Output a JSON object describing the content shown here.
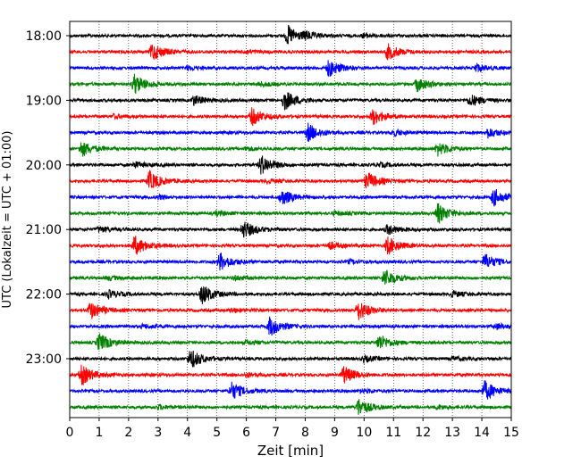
{
  "chart_data": {
    "type": "line",
    "xlabel": "Zeit  [min]",
    "ylabel": "UTC (Lokalzeit = UTC + 01:00)",
    "xlim": [
      0,
      15
    ],
    "x_ticks": [
      "0",
      "1",
      "2",
      "3",
      "4",
      "5",
      "6",
      "7",
      "8",
      "9",
      "10",
      "11",
      "12",
      "13",
      "14",
      "15"
    ],
    "y_tick_labels": [
      "18:00",
      "19:00",
      "20:00",
      "21:00",
      "22:00",
      "23:00"
    ],
    "grid": "vertical dotted",
    "line_colors": [
      "#000000",
      "#ff0000",
      "#0000ff",
      "#008000"
    ],
    "traces": [
      {
        "label": "18:00",
        "color": "#000000",
        "events": [
          [
            7.4,
            1.0
          ],
          [
            8.0,
            0.3
          ],
          [
            10.0,
            0.2
          ]
        ]
      },
      {
        "label": "18:15",
        "color": "#ff0000",
        "events": [
          [
            2.8,
            0.9
          ],
          [
            10.8,
            0.8
          ],
          [
            6.0,
            0.2
          ]
        ]
      },
      {
        "label": "18:30",
        "color": "#0000ff",
        "events": [
          [
            8.8,
            0.9
          ],
          [
            13.8,
            0.4
          ],
          [
            4.0,
            0.2
          ]
        ]
      },
      {
        "label": "18:45",
        "color": "#008000",
        "events": [
          [
            2.2,
            1.0
          ],
          [
            11.8,
            0.7
          ],
          [
            6.5,
            0.2
          ]
        ]
      },
      {
        "label": "19:00",
        "color": "#000000",
        "events": [
          [
            7.3,
            1.0
          ],
          [
            4.2,
            0.5
          ],
          [
            13.6,
            0.6
          ]
        ]
      },
      {
        "label": "19:15",
        "color": "#ff0000",
        "events": [
          [
            6.2,
            0.9
          ],
          [
            10.3,
            0.8
          ],
          [
            1.5,
            0.2
          ]
        ]
      },
      {
        "label": "19:30",
        "color": "#0000ff",
        "events": [
          [
            8.1,
            0.9
          ],
          [
            14.2,
            0.5
          ],
          [
            11.0,
            0.3
          ]
        ]
      },
      {
        "label": "19:45",
        "color": "#008000",
        "events": [
          [
            0.4,
            0.8
          ],
          [
            12.5,
            0.7
          ],
          [
            6.0,
            0.2
          ]
        ]
      },
      {
        "label": "20:00",
        "color": "#000000",
        "events": [
          [
            6.5,
            1.0
          ],
          [
            2.2,
            0.3
          ],
          [
            10.5,
            0.2
          ]
        ]
      },
      {
        "label": "20:15",
        "color": "#ff0000",
        "events": [
          [
            2.7,
            1.0
          ],
          [
            10.1,
            0.9
          ],
          [
            6.7,
            0.2
          ]
        ]
      },
      {
        "label": "20:30",
        "color": "#0000ff",
        "events": [
          [
            7.2,
            0.8
          ],
          [
            14.4,
            0.9
          ],
          [
            3.0,
            0.2
          ]
        ]
      },
      {
        "label": "20:45",
        "color": "#008000",
        "events": [
          [
            12.5,
            1.0
          ],
          [
            5.0,
            0.2
          ],
          [
            9.0,
            0.2
          ]
        ]
      },
      {
        "label": "21:00",
        "color": "#000000",
        "events": [
          [
            5.9,
            0.9
          ],
          [
            10.8,
            0.5
          ],
          [
            1.0,
            0.3
          ]
        ]
      },
      {
        "label": "21:15",
        "color": "#ff0000",
        "events": [
          [
            2.2,
            1.0
          ],
          [
            10.8,
            0.9
          ],
          [
            8.8,
            0.4
          ]
        ]
      },
      {
        "label": "21:30",
        "color": "#0000ff",
        "events": [
          [
            5.1,
            0.9
          ],
          [
            14.1,
            0.8
          ],
          [
            9.5,
            0.2
          ]
        ]
      },
      {
        "label": "21:45",
        "color": "#008000",
        "events": [
          [
            10.7,
            0.9
          ],
          [
            1.3,
            0.2
          ],
          [
            5.6,
            0.2
          ]
        ]
      },
      {
        "label": "22:00",
        "color": "#000000",
        "events": [
          [
            4.5,
            1.0
          ],
          [
            1.3,
            0.4
          ],
          [
            13.0,
            0.3
          ]
        ]
      },
      {
        "label": "22:15",
        "color": "#ff0000",
        "events": [
          [
            0.7,
            0.9
          ],
          [
            9.8,
            1.0
          ],
          [
            5.5,
            0.2
          ]
        ]
      },
      {
        "label": "22:30",
        "color": "#0000ff",
        "events": [
          [
            6.8,
            1.0
          ],
          [
            14.5,
            0.3
          ],
          [
            2.5,
            0.2
          ]
        ]
      },
      {
        "label": "22:45",
        "color": "#008000",
        "events": [
          [
            1.0,
            0.9
          ],
          [
            10.5,
            0.8
          ],
          [
            6.0,
            0.2
          ]
        ]
      },
      {
        "label": "23:00",
        "color": "#000000",
        "events": [
          [
            4.1,
            1.0
          ],
          [
            10.0,
            0.3
          ],
          [
            13.0,
            0.2
          ]
        ]
      },
      {
        "label": "23:15",
        "color": "#ff0000",
        "events": [
          [
            0.4,
            1.0
          ],
          [
            9.3,
            0.9
          ],
          [
            6.0,
            0.2
          ]
        ]
      },
      {
        "label": "23:30",
        "color": "#0000ff",
        "events": [
          [
            5.5,
            0.9
          ],
          [
            14.1,
            1.0
          ],
          [
            9.9,
            0.2
          ]
        ]
      },
      {
        "label": "23:45",
        "color": "#008000",
        "events": [
          [
            9.8,
            0.9
          ],
          [
            3.0,
            0.2
          ],
          [
            12.5,
            0.2
          ]
        ]
      }
    ]
  }
}
